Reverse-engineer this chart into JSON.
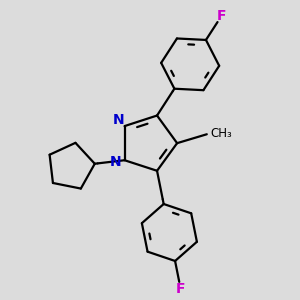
{
  "background_color": "#dcdcdc",
  "bond_color": "#000000",
  "nitrogen_color": "#0000cc",
  "fluorine_color": "#cc00cc",
  "line_width": 1.6,
  "figsize": [
    3.0,
    3.0
  ],
  "dpi": 100,
  "xlim": [
    0.0,
    3.0
  ],
  "ylim": [
    0.0,
    3.0
  ]
}
